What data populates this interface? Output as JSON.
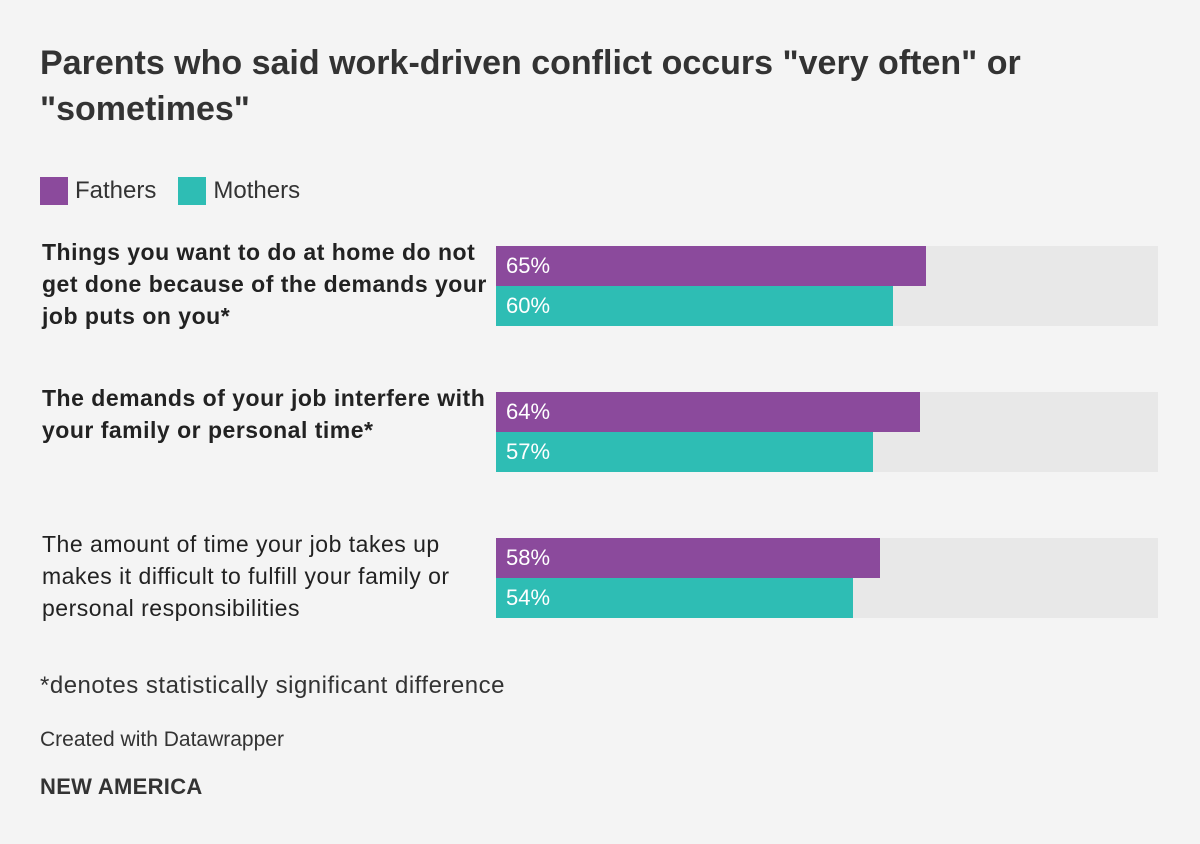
{
  "title": "Parents who said work-driven conflict occurs \"very often\" or \"sometimes\"",
  "chart_data": {
    "type": "bar",
    "orientation": "horizontal",
    "title": "Parents who said work-driven conflict occurs \"very often\" or \"sometimes\"",
    "categories": [
      "Things you want to do at home do not get done because of the demands your job puts on you*",
      "The demands of your job interfere with your family or personal time*",
      "The amount of time your job takes up makes it difficult to fulfill your family or personal responsibilities"
    ],
    "category_bold": [
      true,
      true,
      false
    ],
    "series": [
      {
        "name": "Fathers",
        "color": "#8b4a9c",
        "values": [
          65,
          64,
          58
        ],
        "labels": [
          "65%",
          "64%",
          "58%"
        ]
      },
      {
        "name": "Mothers",
        "color": "#2ebdb4",
        "values": [
          60,
          57,
          54
        ],
        "labels": [
          "60%",
          "57%",
          "54%"
        ]
      }
    ],
    "xlim": [
      0,
      100
    ],
    "unit": "%",
    "legend_position": "top-left",
    "grid": false,
    "track_color": "#e8e8e8"
  },
  "legend": [
    {
      "label": "Fathers",
      "color": "#8b4a9c"
    },
    {
      "label": "Mothers",
      "color": "#2ebdb4"
    }
  ],
  "footnote": "*denotes statistically significant difference",
  "credit": "Created with Datawrapper",
  "logo_text": "NEW AMERICA"
}
